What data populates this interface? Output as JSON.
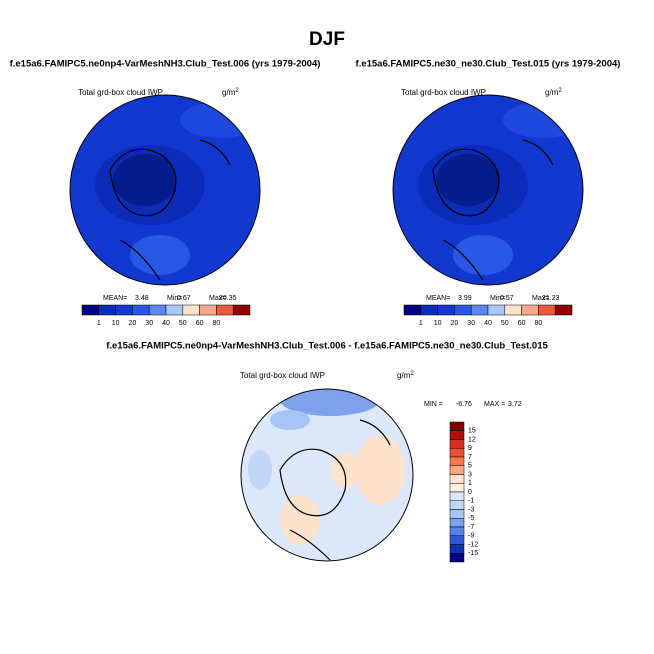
{
  "title": "DJF",
  "panels": [
    {
      "title": "f.e15a6.FAMIPC5.ne0np4-VarMeshNH3.Club_Test.006 (yrs 1979-2004)",
      "variable": "Total grd-box cloud IWP",
      "units": "g/m",
      "units_exp": "2",
      "stats": [
        {
          "label": "MEAN=",
          "value": 3.48
        },
        {
          "label": "Min=",
          "value": 0.67
        },
        {
          "label": "Max=",
          "value": 20.35
        }
      ],
      "colorbar_labels": [
        1,
        10,
        20,
        30,
        40,
        50,
        60,
        80
      ]
    },
    {
      "title": "f.e15a6.FAMIPC5.ne30_ne30.Club_Test.015 (yrs 1979-2004)",
      "variable": "Total grd-box cloud IWP",
      "units": "g/m",
      "units_exp": "2",
      "stats": [
        {
          "label": "MEAN=",
          "value": 3.99
        },
        {
          "label": "Min=",
          "value": 0.57
        },
        {
          "label": "Max=",
          "value": 21.23
        }
      ],
      "colorbar_labels": [
        1,
        10,
        20,
        30,
        40,
        50,
        60,
        80
      ]
    },
    {
      "title": "f.e15a6.FAMIPC5.ne0np4-VarMeshNH3.Club_Test.006 - f.e15a6.FAMIPC5.ne30_ne30.Club_Test.015",
      "variable": "Total grd-box cloud IWP",
      "units": "g/m",
      "units_exp": "2",
      "stats": [
        {
          "label": "MIN =",
          "value": -6.76
        },
        {
          "label": "MAX =",
          "value": 3.72
        }
      ],
      "colorbar_labels": [
        15,
        12,
        9,
        7,
        5,
        3,
        1,
        0,
        -1,
        -3,
        -5,
        -7,
        -9,
        -12,
        -15
      ]
    }
  ]
}
